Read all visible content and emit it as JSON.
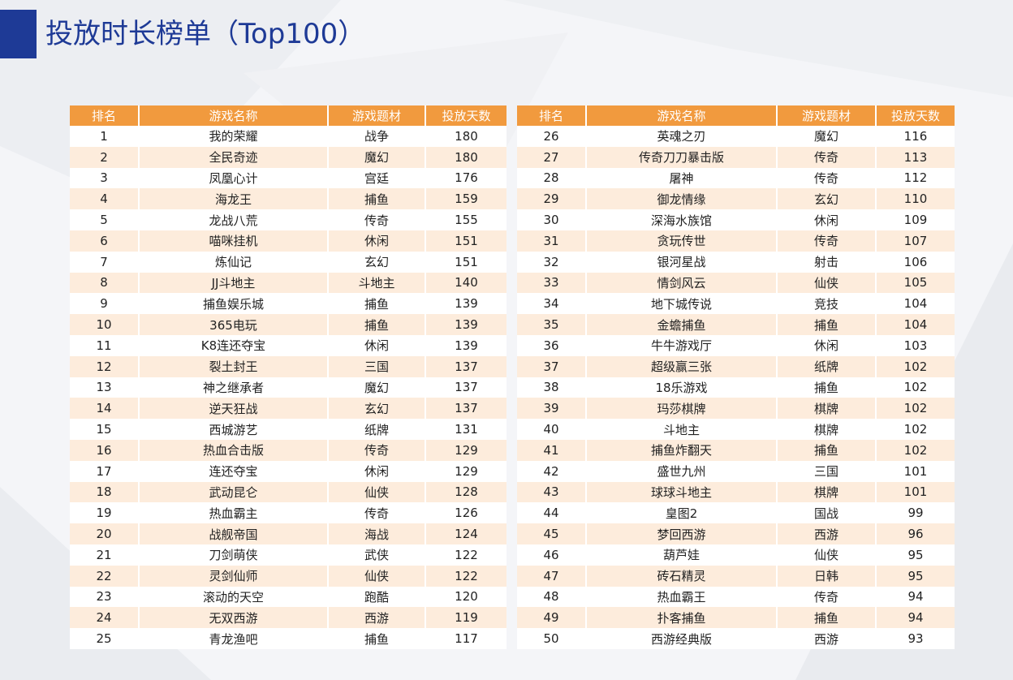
{
  "title": "投放时长榜单（Top100）",
  "colors": {
    "accent": "#1e3a96",
    "header": "#f19a3e",
    "stripe": "#fdecdc"
  },
  "headers": [
    "排名",
    "游戏名称",
    "游戏题材",
    "投放天数"
  ],
  "left_rows": [
    [
      "1",
      "我的荣耀",
      "战争",
      "180"
    ],
    [
      "2",
      "全民奇迹",
      "魔幻",
      "180"
    ],
    [
      "3",
      "凤凰心计",
      "宫廷",
      "176"
    ],
    [
      "4",
      "海龙王",
      "捕鱼",
      "159"
    ],
    [
      "5",
      "龙战八荒",
      "传奇",
      "155"
    ],
    [
      "6",
      "喵咪挂机",
      "休闲",
      "151"
    ],
    [
      "7",
      "炼仙记",
      "玄幻",
      "151"
    ],
    [
      "8",
      "JJ斗地主",
      "斗地主",
      "140"
    ],
    [
      "9",
      "捕鱼娱乐城",
      "捕鱼",
      "139"
    ],
    [
      "10",
      "365电玩",
      "捕鱼",
      "139"
    ],
    [
      "11",
      "K8连还夺宝",
      "休闲",
      "139"
    ],
    [
      "12",
      "裂土封王",
      "三国",
      "137"
    ],
    [
      "13",
      "神之继承者",
      "魔幻",
      "137"
    ],
    [
      "14",
      "逆天狂战",
      "玄幻",
      "137"
    ],
    [
      "15",
      "西城游艺",
      "纸牌",
      "131"
    ],
    [
      "16",
      "热血合击版",
      "传奇",
      "129"
    ],
    [
      "17",
      "连还夺宝",
      "休闲",
      "129"
    ],
    [
      "18",
      "武动昆仑",
      "仙侠",
      "128"
    ],
    [
      "19",
      "热血霸主",
      "传奇",
      "126"
    ],
    [
      "20",
      "战舰帝国",
      "海战",
      "124"
    ],
    [
      "21",
      "刀剑萌侠",
      "武侠",
      "122"
    ],
    [
      "22",
      "灵剑仙师",
      "仙侠",
      "122"
    ],
    [
      "23",
      "滚动的天空",
      "跑酷",
      "120"
    ],
    [
      "24",
      "无双西游",
      "西游",
      "119"
    ],
    [
      "25",
      "青龙渔吧",
      "捕鱼",
      "117"
    ]
  ],
  "right_rows": [
    [
      "26",
      "英魂之刃",
      "魔幻",
      "116"
    ],
    [
      "27",
      "传奇刀刀暴击版",
      "传奇",
      "113"
    ],
    [
      "28",
      "屠神",
      "传奇",
      "112"
    ],
    [
      "29",
      "御龙情缘",
      "玄幻",
      "110"
    ],
    [
      "30",
      "深海水族馆",
      "休闲",
      "109"
    ],
    [
      "31",
      "贪玩传世",
      "传奇",
      "107"
    ],
    [
      "32",
      "银河星战",
      "射击",
      "106"
    ],
    [
      "33",
      "情剑风云",
      "仙侠",
      "105"
    ],
    [
      "34",
      "地下城传说",
      "竞技",
      "104"
    ],
    [
      "35",
      "金蟾捕鱼",
      "捕鱼",
      "104"
    ],
    [
      "36",
      "牛牛游戏厅",
      "休闲",
      "103"
    ],
    [
      "37",
      "超级赢三张",
      "纸牌",
      "102"
    ],
    [
      "38",
      "18乐游戏",
      "捕鱼",
      "102"
    ],
    [
      "39",
      "玛莎棋牌",
      "棋牌",
      "102"
    ],
    [
      "40",
      "斗地主",
      "棋牌",
      "102"
    ],
    [
      "41",
      "捕鱼炸翻天",
      "捕鱼",
      "102"
    ],
    [
      "42",
      "盛世九州",
      "三国",
      "101"
    ],
    [
      "43",
      "球球斗地主",
      "棋牌",
      "101"
    ],
    [
      "44",
      "皇图2",
      "国战",
      "99"
    ],
    [
      "45",
      "梦回西游",
      "西游",
      "96"
    ],
    [
      "46",
      "葫芦娃",
      "仙侠",
      "95"
    ],
    [
      "47",
      "砖石精灵",
      "日韩",
      "95"
    ],
    [
      "48",
      "热血霸王",
      "传奇",
      "94"
    ],
    [
      "49",
      "扑客捕鱼",
      "捕鱼",
      "94"
    ],
    [
      "50",
      "西游经典版",
      "西游",
      "93"
    ]
  ]
}
